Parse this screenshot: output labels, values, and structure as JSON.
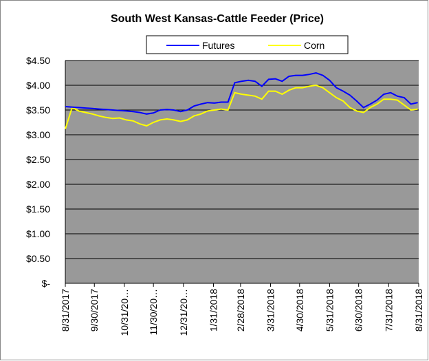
{
  "chart_data": {
    "type": "line",
    "title": "South West Kansas-Cattle Feeder (Price)",
    "x": [
      "8/31/2017",
      "9/7/2017",
      "9/14/2017",
      "9/21/2017",
      "9/28/2017",
      "10/5/2017",
      "10/12/2017",
      "10/19/2017",
      "10/26/2017",
      "11/2/2017",
      "11/9/2017",
      "11/16/2017",
      "11/23/2017",
      "11/30/2017",
      "12/7/2017",
      "12/14/2017",
      "12/21/2017",
      "12/28/2017",
      "1/4/2018",
      "1/11/2018",
      "1/18/2018",
      "1/25/2018",
      "2/1/2018",
      "2/8/2018",
      "2/15/2018",
      "2/22/2018",
      "3/1/2018",
      "3/8/2018",
      "3/15/2018",
      "3/22/2018",
      "3/29/2018",
      "4/5/2018",
      "4/12/2018",
      "4/19/2018",
      "4/26/2018",
      "5/3/2018",
      "5/10/2018",
      "5/17/2018",
      "5/24/2018",
      "5/31/2018",
      "6/7/2018",
      "6/14/2018",
      "6/21/2018",
      "6/28/2018",
      "7/5/2018",
      "7/12/2018",
      "7/19/2018",
      "7/26/2018",
      "8/2/2018",
      "8/9/2018",
      "8/16/2018",
      "8/23/2018",
      "8/30/2018"
    ],
    "series": [
      {
        "name": "Futures",
        "color": "#0000ff",
        "values": [
          3.57,
          3.56,
          3.55,
          3.54,
          3.53,
          3.52,
          3.51,
          3.5,
          3.49,
          3.48,
          3.47,
          3.45,
          3.42,
          3.44,
          3.5,
          3.51,
          3.5,
          3.47,
          3.5,
          3.58,
          3.62,
          3.65,
          3.64,
          3.66,
          3.66,
          4.05,
          4.08,
          4.1,
          4.08,
          3.98,
          4.12,
          4.13,
          4.08,
          4.18,
          4.2,
          4.2,
          4.22,
          4.25,
          4.2,
          4.1,
          3.95,
          3.88,
          3.8,
          3.68,
          3.55,
          3.62,
          3.7,
          3.82,
          3.85,
          3.78,
          3.75,
          3.62,
          3.65
        ]
      },
      {
        "name": "Corn",
        "color": "#ffff00",
        "values": [
          3.12,
          3.55,
          3.48,
          3.45,
          3.42,
          3.38,
          3.35,
          3.33,
          3.34,
          3.3,
          3.28,
          3.22,
          3.18,
          3.25,
          3.3,
          3.32,
          3.3,
          3.27,
          3.3,
          3.38,
          3.42,
          3.48,
          3.5,
          3.52,
          3.5,
          3.85,
          3.82,
          3.8,
          3.78,
          3.72,
          3.88,
          3.88,
          3.82,
          3.9,
          3.95,
          3.95,
          3.98,
          4.0,
          3.95,
          3.85,
          3.75,
          3.68,
          3.55,
          3.48,
          3.45,
          3.55,
          3.62,
          3.72,
          3.72,
          3.7,
          3.6,
          3.5,
          3.52
        ]
      }
    ],
    "xlim": [
      "8/31/2017",
      "8/31/2018"
    ],
    "xticks": [
      "8/31/2017",
      "9/30/2017",
      {
        "value": "10/31/2017",
        "label": "10/31/20…"
      },
      {
        "value": "11/30/2017",
        "label": "11/30/20…"
      },
      {
        "value": "12/31/2017",
        "label": "12/31/20…"
      },
      "1/31/2018",
      "2/28/2018",
      "3/31/2018",
      "4/30/2018",
      "5/31/2018",
      "6/30/2018",
      "7/31/2018",
      "8/31/2018"
    ],
    "ylim": [
      0,
      4.5
    ],
    "yticks": [
      {
        "value": 0,
        "label": "$-"
      },
      {
        "value": 0.5,
        "label": "$0.50"
      },
      {
        "value": 1,
        "label": "$1.00"
      },
      {
        "value": 1.5,
        "label": "$1.50"
      },
      {
        "value": 2,
        "label": "$2.00"
      },
      {
        "value": 2.5,
        "label": "$2.50"
      },
      {
        "value": 3,
        "label": "$3.00"
      },
      {
        "value": 3.5,
        "label": "$3.50"
      },
      {
        "value": 4,
        "label": "$4.00"
      },
      {
        "value": 4.5,
        "label": "$4.50"
      }
    ],
    "grid": true
  }
}
